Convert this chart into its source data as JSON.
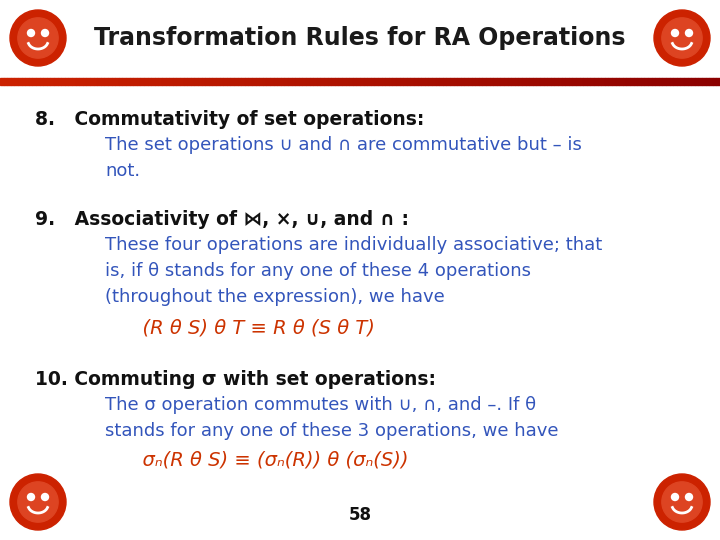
{
  "title": "Transformation Rules for RA Operations",
  "title_color": "#1a1a1a",
  "title_fontsize": 17,
  "bg_color": "#ffffff",
  "header_bar_color1": "#cc2200",
  "header_bar_color2": "#8b0000",
  "black_text_color": "#111111",
  "blue_text_color": "#3355bb",
  "red_text_color": "#cc3300",
  "item8_heading": "8.   Commutativity of set operations:",
  "item8_body1": "The set operations ∪ and ∩ are commutative but – is",
  "item8_body2": "not.",
  "item9_heading": "9.   Associativity of ⋈, ×, ∪, and ∩ :",
  "item9_body1": "These four operations are individually associative; that",
  "item9_body2": "is, if θ stands for any one of these 4 operations",
  "item9_body3": "(throughout the expression), we have",
  "item9_formula": "      (R θ S) θ T ≡ R θ (S θ T)",
  "item10_heading": "10. Commuting σ with set operations:",
  "item10_body1": "The σ operation commutes with ∪, ∩, and –. If θ",
  "item10_body2": "stands for any one of these 3 operations, we have",
  "item10_formula": "      σₙ(R θ S) ≡ (σₙ(R)) θ (σₙ(S))",
  "page_number": "58",
  "circle_color": "#cc2200",
  "circle_symbol": "☻"
}
